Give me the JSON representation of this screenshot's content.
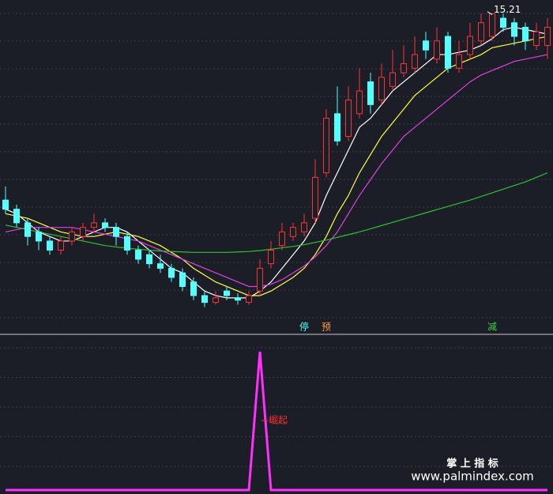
{
  "chart_data": [
    {
      "type": "candlestick",
      "ylim": [
        8.2,
        15.5
      ],
      "up_color": "#ff3232",
      "down_color": "#54ffff",
      "open": [
        11.1,
        10.9,
        10.6,
        10.4,
        10.2,
        10.0,
        10.2,
        10.3,
        10.5,
        10.6,
        10.5,
        10.3,
        10.0,
        9.9,
        9.7,
        9.6,
        9.5,
        9.3,
        9.0,
        8.85,
        9.1,
        8.95,
        8.85,
        9.1,
        9.7,
        10.1,
        10.3,
        10.4,
        10.7,
        11.7,
        13.0,
        12.5,
        13.0,
        13.7,
        13.3,
        13.6,
        13.9,
        14.0,
        14.6,
        14.2,
        14.7,
        14.0,
        14.3,
        14.6,
        14.7,
        15.1,
        15.0,
        14.9,
        14.5,
        14.5
      ],
      "high": [
        11.4,
        11.0,
        10.7,
        10.5,
        10.3,
        10.3,
        10.5,
        10.6,
        10.8,
        10.7,
        10.6,
        10.4,
        10.1,
        10.0,
        9.9,
        9.7,
        9.6,
        9.4,
        9.1,
        9.1,
        9.2,
        9.05,
        9.1,
        9.8,
        10.2,
        10.6,
        10.6,
        10.8,
        12.0,
        13.1,
        13.6,
        13.6,
        14.0,
        13.9,
        14.1,
        14.4,
        14.5,
        14.7,
        14.8,
        14.9,
        14.8,
        14.6,
        15.0,
        15.2,
        15.21,
        15.2,
        15.1,
        15.0,
        15.0,
        15.1
      ],
      "low": [
        10.8,
        10.5,
        10.1,
        10.0,
        9.9,
        9.9,
        10.1,
        10.2,
        10.4,
        10.4,
        10.1,
        9.9,
        9.7,
        9.6,
        9.5,
        9.3,
        9.1,
        8.9,
        8.75,
        8.8,
        8.9,
        8.8,
        8.8,
        9.0,
        9.6,
        10.0,
        10.2,
        10.3,
        10.6,
        11.6,
        12.3,
        12.4,
        12.9,
        13.0,
        13.2,
        13.5,
        13.8,
        13.9,
        14.2,
        14.1,
        13.9,
        13.9,
        14.2,
        14.5,
        14.6,
        14.8,
        14.5,
        14.4,
        14.4,
        14.2
      ],
      "close": [
        10.9,
        10.6,
        10.3,
        10.2,
        10.0,
        10.2,
        10.4,
        10.5,
        10.6,
        10.5,
        10.3,
        10.0,
        9.8,
        9.7,
        9.6,
        9.4,
        9.2,
        9.0,
        8.85,
        8.95,
        9.0,
        8.9,
        9.0,
        9.6,
        10.0,
        10.4,
        10.5,
        10.6,
        11.6,
        12.9,
        12.4,
        13.3,
        13.5,
        13.2,
        13.8,
        13.9,
        14.1,
        14.3,
        14.4,
        14.6,
        14.0,
        14.3,
        14.7,
        15.0,
        15.2,
        14.9,
        14.7,
        14.6,
        14.8,
        14.9
      ],
      "series": [
        {
          "color": "#ffffff",
          "values": [
            10.9,
            10.8,
            10.6,
            10.4,
            10.3,
            10.2,
            10.2,
            10.3,
            10.4,
            10.5,
            10.5,
            10.4,
            10.2,
            10.0,
            9.8,
            9.6,
            9.5,
            9.3,
            9.1,
            9.0,
            8.95,
            8.95,
            8.95,
            9.1,
            9.3,
            9.6,
            9.9,
            10.2,
            10.6,
            11.2,
            11.7,
            12.2,
            12.7,
            12.9,
            13.2,
            13.5,
            13.7,
            13.9,
            14.1,
            14.3,
            14.3,
            14.35,
            14.4,
            14.5,
            14.65,
            14.85,
            14.9,
            14.85,
            14.8,
            14.75
          ]
        },
        {
          "color": "#ffff40",
          "values": [
            10.8,
            10.75,
            10.7,
            10.6,
            10.5,
            10.4,
            10.35,
            10.3,
            10.3,
            10.35,
            10.4,
            10.35,
            10.3,
            10.2,
            10.1,
            9.95,
            9.8,
            9.6,
            9.45,
            9.3,
            9.2,
            9.1,
            9.0,
            9.0,
            9.1,
            9.25,
            9.4,
            9.6,
            9.9,
            10.3,
            10.8,
            11.2,
            11.7,
            12.1,
            12.5,
            12.8,
            13.1,
            13.4,
            13.6,
            13.8,
            14.0,
            14.1,
            14.2,
            14.3,
            14.45,
            14.5,
            14.55,
            14.6,
            14.65,
            14.7
          ]
        },
        {
          "color": "#e040e0",
          "values": [
            10.4,
            10.45,
            10.5,
            10.5,
            10.5,
            10.5,
            10.5,
            10.45,
            10.4,
            10.35,
            10.3,
            10.25,
            10.2,
            10.1,
            10.0,
            9.9,
            9.8,
            9.7,
            9.6,
            9.5,
            9.4,
            9.3,
            9.2,
            9.2,
            9.25,
            9.35,
            9.5,
            9.65,
            9.85,
            10.1,
            10.4,
            10.8,
            11.2,
            11.55,
            11.9,
            12.2,
            12.5,
            12.7,
            12.9,
            13.1,
            13.3,
            13.5,
            13.7,
            13.85,
            13.95,
            14.05,
            14.15,
            14.2,
            14.25,
            14.3
          ]
        },
        {
          "color": "#30c030",
          "values": [
            10.55,
            10.5,
            10.45,
            10.4,
            10.35,
            10.3,
            10.25,
            10.2,
            10.15,
            10.1,
            10.07,
            10.04,
            10.02,
            10.0,
            9.98,
            9.97,
            9.96,
            9.95,
            9.95,
            9.95,
            9.95,
            9.96,
            9.97,
            9.99,
            10.02,
            10.05,
            10.08,
            10.12,
            10.17,
            10.22,
            10.28,
            10.34,
            10.4,
            10.47,
            10.54,
            10.61,
            10.68,
            10.75,
            10.82,
            10.89,
            10.96,
            11.03,
            11.1,
            11.18,
            11.26,
            11.34,
            11.42,
            11.5,
            11.6,
            11.7
          ]
        }
      ],
      "signals": [
        {
          "text": "停",
          "index": 27,
          "color": "#54ffff"
        },
        {
          "text": "预",
          "index": 29,
          "color": "#ff9a30"
        },
        {
          "text": "减",
          "index": 44,
          "color": "#40d040"
        }
      ]
    },
    {
      "type": "line",
      "ylim": [
        0,
        100
      ],
      "color": "#ff30ff",
      "values": [
        0,
        0,
        0,
        0,
        0,
        0,
        0,
        0,
        0,
        0,
        0,
        0,
        0,
        0,
        0,
        0,
        0,
        0,
        0,
        0,
        0,
        0,
        0,
        100,
        0,
        0,
        0,
        0,
        0,
        0,
        0,
        0,
        0,
        0,
        0,
        0,
        0,
        0,
        0,
        0,
        0,
        0,
        0,
        0,
        0,
        0,
        0,
        0,
        0,
        0
      ],
      "annotation": {
        "text": "崛起",
        "index": 23,
        "color": "#ff3030"
      }
    }
  ],
  "watermark": {
    "title": "掌 上 指 标",
    "url": "www.palmindex.com"
  }
}
